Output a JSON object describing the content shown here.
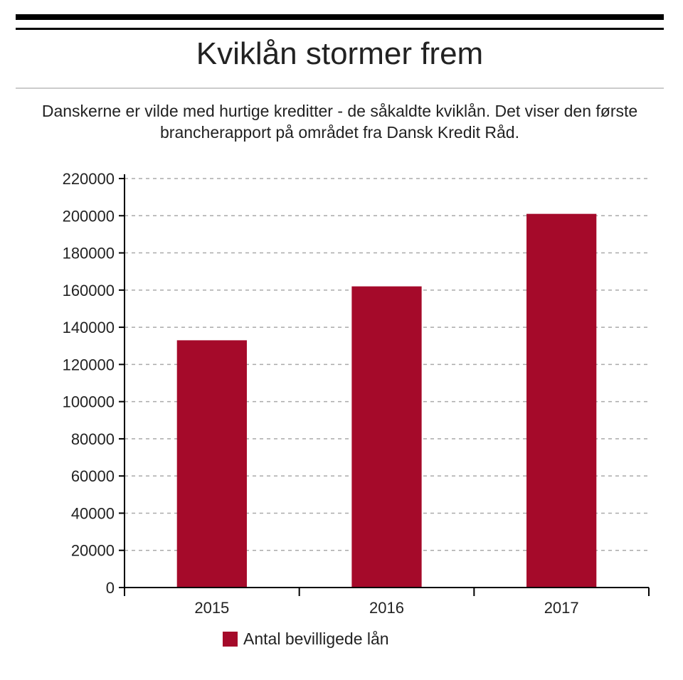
{
  "header": {
    "title": "Kviklån stormer frem",
    "subtitle": "Danskerne er vilde med hurtige kreditter - de såkaldte kviklån. Det viser den første brancherapport på området fra Dansk Kredit Råd."
  },
  "colors": {
    "bar": "#a50a2a",
    "grid": "#aaaaaa",
    "axis": "#000000",
    "text": "#222222"
  },
  "chart_data": {
    "type": "bar",
    "title": "Kviklån stormer frem",
    "categories": [
      "2015",
      "2016",
      "2017"
    ],
    "series": [
      {
        "name": "Antal bevilligede lån",
        "values": [
          133000,
          162000,
          201000
        ]
      }
    ],
    "ylim": [
      0,
      220000
    ],
    "yticks": [
      0,
      20000,
      40000,
      60000,
      80000,
      100000,
      120000,
      140000,
      160000,
      180000,
      200000,
      220000
    ],
    "grid": true,
    "grid_style": "dashed",
    "legend_position": "bottom"
  }
}
